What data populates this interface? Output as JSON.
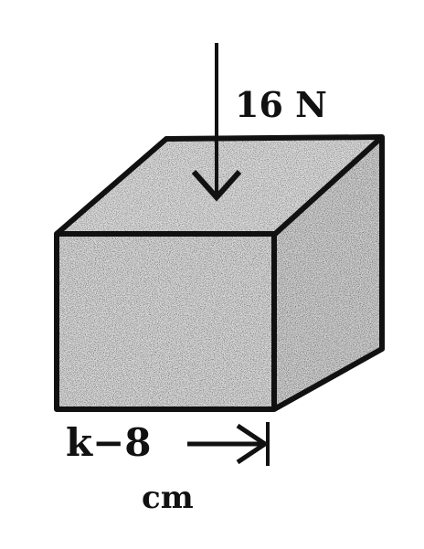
{
  "force": {
    "label": "16 N"
  },
  "dimension": {
    "label": "k−8",
    "unit": "cm"
  },
  "colors": {
    "stroke": "#111111",
    "face_fill": "#d9d9d9",
    "background": "#ffffff"
  }
}
